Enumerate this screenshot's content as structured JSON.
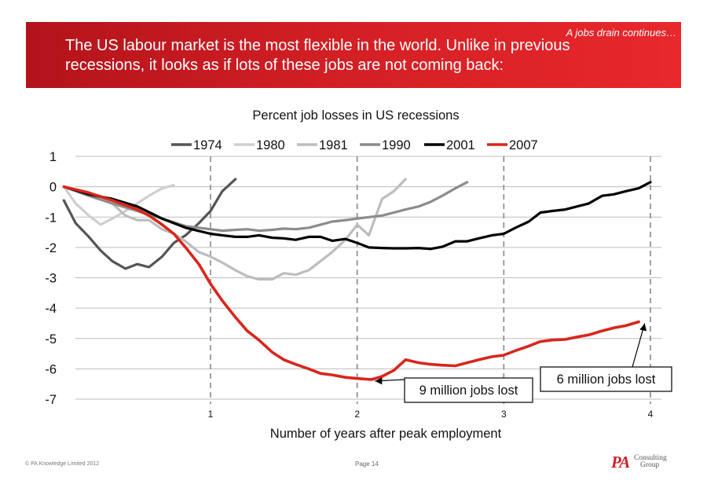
{
  "header": {
    "tagline": "A jobs drain continues…",
    "title": "The US labour market is the most flexible in the world. Unlike in previous recessions, it looks as if lots of these jobs are not coming back:"
  },
  "footer": {
    "copyright": "© PA Knowledge Limited 2012",
    "page": "Page 14",
    "logo_mark": "PA",
    "logo_line1": "Consulting",
    "logo_line2": "Group"
  },
  "chart_data": {
    "type": "line",
    "title": "Percent job losses in US recessions",
    "xlabel": "Number of years after peak employment",
    "ylabel": "",
    "xlim": [
      0,
      4.05
    ],
    "ylim": [
      -7,
      1
    ],
    "x_ticks": [
      1,
      2,
      3,
      4
    ],
    "y_ticks": [
      1,
      0,
      -1,
      -2,
      -3,
      -4,
      -5,
      -6,
      -7
    ],
    "grid": "horizontal solid, vertical dashed at each year",
    "legend_position": "top",
    "series": [
      {
        "name": "1974",
        "color": "#555555",
        "width": 3.2,
        "points": [
          [
            0,
            -0.45
          ],
          [
            0.08,
            -1.2
          ],
          [
            0.17,
            -1.65
          ],
          [
            0.25,
            -2.1
          ],
          [
            0.33,
            -2.45
          ],
          [
            0.42,
            -2.7
          ],
          [
            0.5,
            -2.55
          ],
          [
            0.58,
            -2.65
          ],
          [
            0.67,
            -2.3
          ],
          [
            0.75,
            -1.85
          ],
          [
            0.83,
            -1.6
          ],
          [
            0.92,
            -1.2
          ],
          [
            1.0,
            -0.8
          ],
          [
            1.08,
            -0.15
          ],
          [
            1.17,
            0.25
          ]
        ]
      },
      {
        "name": "1980",
        "color": "#cfcfcf",
        "width": 3.2,
        "points": [
          [
            0,
            0.0
          ],
          [
            0.08,
            -0.55
          ],
          [
            0.17,
            -0.95
          ],
          [
            0.25,
            -1.25
          ],
          [
            0.33,
            -1.05
          ],
          [
            0.42,
            -0.8
          ],
          [
            0.5,
            -0.55
          ],
          [
            0.58,
            -0.3
          ],
          [
            0.67,
            -0.05
          ],
          [
            0.75,
            0.05
          ]
        ]
      },
      {
        "name": "1981",
        "color": "#bdbdbd",
        "width": 3.2,
        "points": [
          [
            0,
            0.0
          ],
          [
            0.17,
            -0.25
          ],
          [
            0.33,
            -0.55
          ],
          [
            0.42,
            -0.95
          ],
          [
            0.5,
            -1.1
          ],
          [
            0.58,
            -1.1
          ],
          [
            0.67,
            -1.4
          ],
          [
            0.75,
            -1.55
          ],
          [
            0.83,
            -1.8
          ],
          [
            0.92,
            -2.15
          ],
          [
            1.0,
            -2.3
          ],
          [
            1.08,
            -2.5
          ],
          [
            1.17,
            -2.75
          ],
          [
            1.25,
            -2.95
          ],
          [
            1.33,
            -3.05
          ],
          [
            1.42,
            -3.05
          ],
          [
            1.5,
            -2.85
          ],
          [
            1.58,
            -2.9
          ],
          [
            1.67,
            -2.75
          ],
          [
            1.75,
            -2.45
          ],
          [
            1.83,
            -2.15
          ],
          [
            1.92,
            -1.75
          ],
          [
            2.0,
            -1.25
          ],
          [
            2.08,
            -1.6
          ],
          [
            2.17,
            -0.4
          ],
          [
            2.25,
            -0.15
          ],
          [
            2.33,
            0.25
          ]
        ]
      },
      {
        "name": "1990",
        "color": "#8c8c8c",
        "width": 3.2,
        "points": [
          [
            0,
            0.0
          ],
          [
            0.17,
            -0.3
          ],
          [
            0.33,
            -0.55
          ],
          [
            0.5,
            -0.8
          ],
          [
            0.67,
            -1.05
          ],
          [
            0.83,
            -1.3
          ],
          [
            1.0,
            -1.4
          ],
          [
            1.08,
            -1.45
          ],
          [
            1.17,
            -1.42
          ],
          [
            1.25,
            -1.4
          ],
          [
            1.33,
            -1.45
          ],
          [
            1.42,
            -1.42
          ],
          [
            1.5,
            -1.38
          ],
          [
            1.58,
            -1.4
          ],
          [
            1.67,
            -1.35
          ],
          [
            1.75,
            -1.25
          ],
          [
            1.83,
            -1.15
          ],
          [
            1.92,
            -1.1
          ],
          [
            2.0,
            -1.05
          ],
          [
            2.08,
            -1.0
          ],
          [
            2.17,
            -0.95
          ],
          [
            2.25,
            -0.85
          ],
          [
            2.33,
            -0.75
          ],
          [
            2.42,
            -0.65
          ],
          [
            2.5,
            -0.5
          ],
          [
            2.58,
            -0.3
          ],
          [
            2.67,
            -0.05
          ],
          [
            2.75,
            0.15
          ]
        ]
      },
      {
        "name": "2001",
        "color": "#000000",
        "width": 3.2,
        "points": [
          [
            0,
            0.0
          ],
          [
            0.17,
            -0.25
          ],
          [
            0.33,
            -0.4
          ],
          [
            0.5,
            -0.65
          ],
          [
            0.67,
            -1.05
          ],
          [
            0.83,
            -1.35
          ],
          [
            1.0,
            -1.55
          ],
          [
            1.08,
            -1.6
          ],
          [
            1.17,
            -1.65
          ],
          [
            1.25,
            -1.65
          ],
          [
            1.33,
            -1.6
          ],
          [
            1.42,
            -1.68
          ],
          [
            1.5,
            -1.7
          ],
          [
            1.58,
            -1.75
          ],
          [
            1.67,
            -1.65
          ],
          [
            1.75,
            -1.65
          ],
          [
            1.83,
            -1.78
          ],
          [
            1.92,
            -1.72
          ],
          [
            2.0,
            -1.85
          ],
          [
            2.08,
            -2.0
          ],
          [
            2.17,
            -2.02
          ],
          [
            2.25,
            -2.03
          ],
          [
            2.33,
            -2.03
          ],
          [
            2.42,
            -2.02
          ],
          [
            2.5,
            -2.05
          ],
          [
            2.58,
            -1.98
          ],
          [
            2.67,
            -1.8
          ],
          [
            2.75,
            -1.8
          ],
          [
            2.83,
            -1.7
          ],
          [
            2.92,
            -1.6
          ],
          [
            3.0,
            -1.55
          ],
          [
            3.08,
            -1.35
          ],
          [
            3.17,
            -1.15
          ],
          [
            3.25,
            -0.85
          ],
          [
            3.33,
            -0.8
          ],
          [
            3.42,
            -0.75
          ],
          [
            3.5,
            -0.65
          ],
          [
            3.58,
            -0.55
          ],
          [
            3.67,
            -0.3
          ],
          [
            3.75,
            -0.25
          ],
          [
            3.83,
            -0.15
          ],
          [
            3.92,
            -0.05
          ],
          [
            4.0,
            0.15
          ]
        ]
      },
      {
        "name": "2007",
        "color": "#d9261c",
        "width": 3.6,
        "points": [
          [
            0,
            0.0
          ],
          [
            0.17,
            -0.2
          ],
          [
            0.33,
            -0.45
          ],
          [
            0.5,
            -0.75
          ],
          [
            0.58,
            -0.95
          ],
          [
            0.67,
            -1.25
          ],
          [
            0.75,
            -1.55
          ],
          [
            0.83,
            -2.0
          ],
          [
            0.92,
            -2.55
          ],
          [
            1.0,
            -3.2
          ],
          [
            1.08,
            -3.75
          ],
          [
            1.17,
            -4.3
          ],
          [
            1.25,
            -4.75
          ],
          [
            1.33,
            -5.05
          ],
          [
            1.42,
            -5.45
          ],
          [
            1.5,
            -5.7
          ],
          [
            1.58,
            -5.85
          ],
          [
            1.67,
            -6.0
          ],
          [
            1.75,
            -6.15
          ],
          [
            1.83,
            -6.2
          ],
          [
            1.92,
            -6.28
          ],
          [
            2.0,
            -6.32
          ],
          [
            2.1,
            -6.35
          ],
          [
            2.17,
            -6.25
          ],
          [
            2.25,
            -6.05
          ],
          [
            2.33,
            -5.7
          ],
          [
            2.42,
            -5.8
          ],
          [
            2.5,
            -5.85
          ],
          [
            2.58,
            -5.88
          ],
          [
            2.67,
            -5.9
          ],
          [
            2.75,
            -5.8
          ],
          [
            2.83,
            -5.7
          ],
          [
            2.92,
            -5.6
          ],
          [
            3.0,
            -5.55
          ],
          [
            3.08,
            -5.4
          ],
          [
            3.17,
            -5.25
          ],
          [
            3.25,
            -5.1
          ],
          [
            3.33,
            -5.05
          ],
          [
            3.42,
            -5.03
          ],
          [
            3.5,
            -4.95
          ],
          [
            3.58,
            -4.88
          ],
          [
            3.67,
            -4.75
          ],
          [
            3.75,
            -4.65
          ],
          [
            3.83,
            -4.58
          ],
          [
            3.92,
            -4.45
          ]
        ]
      }
    ],
    "annotations": [
      {
        "label": "9 million jobs lost",
        "target": [
          2.1,
          -6.35
        ]
      },
      {
        "label": "6 million jobs lost",
        "target": [
          3.95,
          -4.4
        ]
      }
    ]
  }
}
